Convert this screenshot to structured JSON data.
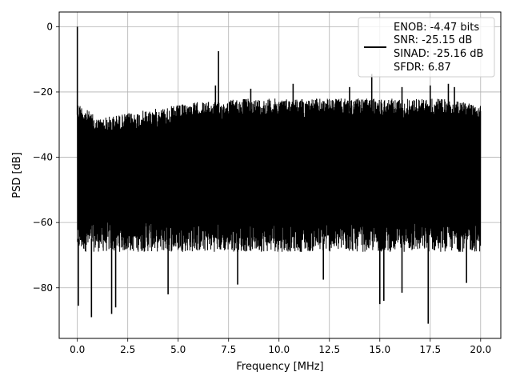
{
  "chart_data": {
    "type": "line",
    "title": "",
    "xlabel": "Frequency [MHz]",
    "ylabel": "PSD [dB]",
    "xlim": [
      -0.9,
      21.0
    ],
    "ylim": [
      -95.5,
      4.5
    ],
    "x_ticks": [
      0.0,
      2.5,
      5.0,
      7.5,
      10.0,
      12.5,
      15.0,
      17.5,
      20.0
    ],
    "x_tick_labels": [
      "0.0",
      "2.5",
      "5.0",
      "7.5",
      "10.0",
      "12.5",
      "15.0",
      "17.5",
      "20.0"
    ],
    "y_ticks": [
      0,
      -20,
      -40,
      -60,
      -80
    ],
    "y_tick_labels": [
      "0",
      "−20",
      "−40",
      "−60",
      "−80"
    ],
    "grid": true,
    "legend_position": "top-right",
    "legend_lines": [
      "ENOB: -4.47 bits",
      "SNR: -25.15 dB",
      "SINAD: -25.16 dB",
      "SFDR: 6.87"
    ],
    "series": [
      {
        "color": "#000000",
        "description_of_shape": "dense noise floor",
        "x_range": [
          0.0,
          20.0
        ],
        "noise_floor_upper_envelope_db": [
          -23,
          -28,
          -27,
          -26,
          -25,
          -24,
          -23,
          -23,
          -22,
          -22,
          -22,
          -22,
          -22,
          -22,
          -22,
          -22,
          -22,
          -22,
          -22,
          -23,
          -23
        ],
        "noise_floor_lower_typical_db": -66,
        "peaks": [
          {
            "x": 0.0,
            "y": 0.0
          },
          {
            "x": 7.0,
            "y": -7.5
          },
          {
            "x": 6.85,
            "y": -18.0
          },
          {
            "x": 8.6,
            "y": -19.0
          },
          {
            "x": 10.7,
            "y": -17.5
          },
          {
            "x": 13.5,
            "y": -18.5
          },
          {
            "x": 14.6,
            "y": -14.5
          },
          {
            "x": 16.1,
            "y": -18.5
          },
          {
            "x": 17.5,
            "y": -18.0
          },
          {
            "x": 18.4,
            "y": -17.5
          },
          {
            "x": 18.7,
            "y": -18.5
          }
        ],
        "dips": [
          {
            "x": 0.05,
            "y": -85.5
          },
          {
            "x": 0.7,
            "y": -89.0
          },
          {
            "x": 1.7,
            "y": -88.0
          },
          {
            "x": 1.9,
            "y": -86.0
          },
          {
            "x": 4.5,
            "y": -82.0
          },
          {
            "x": 7.95,
            "y": -79.0
          },
          {
            "x": 12.2,
            "y": -77.5
          },
          {
            "x": 15.0,
            "y": -85.0
          },
          {
            "x": 15.2,
            "y": -84.0
          },
          {
            "x": 16.1,
            "y": -81.5
          },
          {
            "x": 17.4,
            "y": -91.0
          },
          {
            "x": 19.3,
            "y": -78.5
          }
        ]
      }
    ]
  }
}
